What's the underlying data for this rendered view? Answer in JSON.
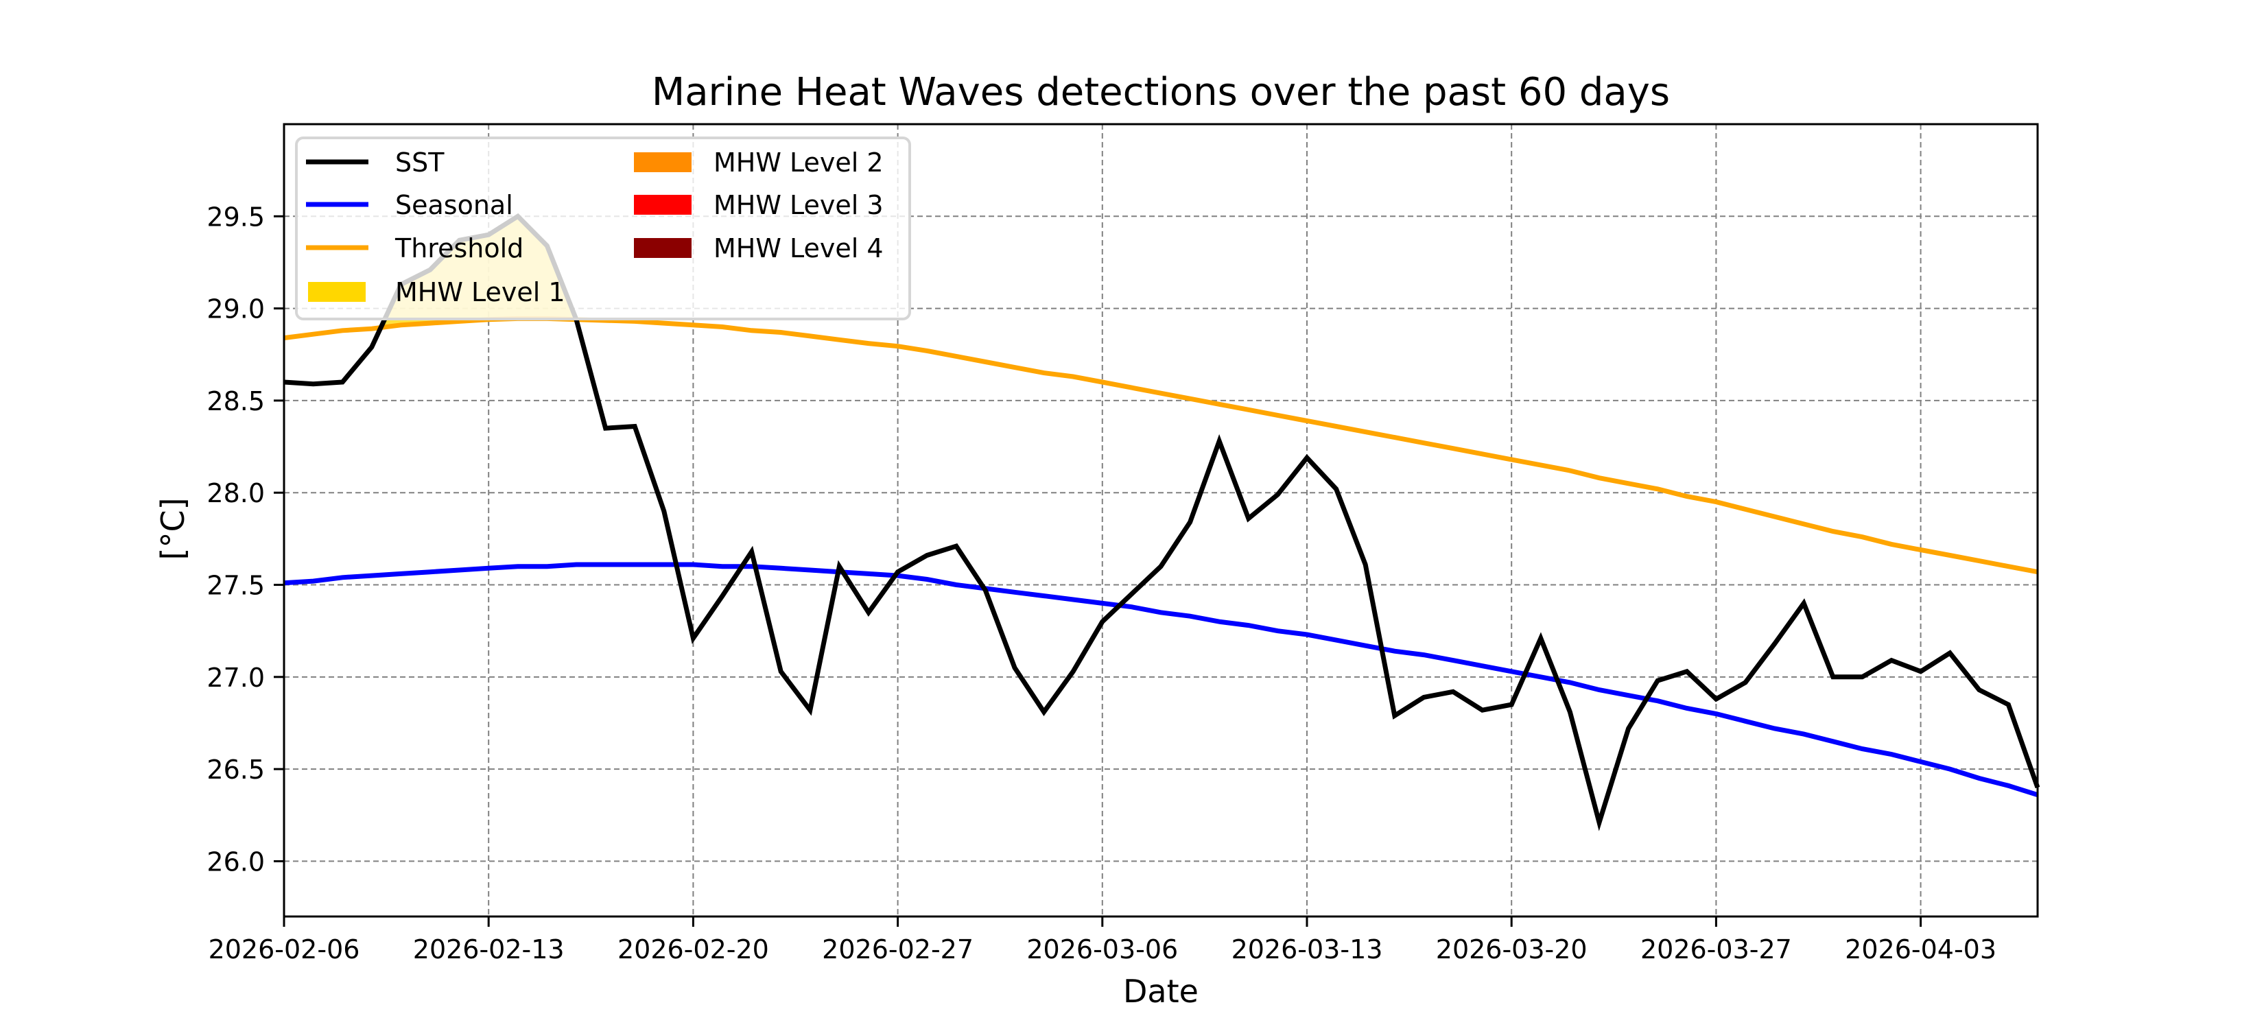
{
  "chart_data": {
    "type": "line",
    "title": "Marine Heat Waves detections over the past 60 days",
    "xlabel": "Date",
    "ylabel": "[°C]",
    "x_start": "2026-02-06",
    "x_end": "2026-04-07",
    "xlim_days": [
      0,
      60
    ],
    "ylim": [
      25.7,
      30.0
    ],
    "grid": true,
    "legend_position": "top-left",
    "x_ticks": [
      {
        "day": 0,
        "label": "2026-02-06"
      },
      {
        "day": 7,
        "label": "2026-02-13"
      },
      {
        "day": 14,
        "label": "2026-02-20"
      },
      {
        "day": 21,
        "label": "2026-02-27"
      },
      {
        "day": 28,
        "label": "2026-03-06"
      },
      {
        "day": 35,
        "label": "2026-03-13"
      },
      {
        "day": 42,
        "label": "2026-03-20"
      },
      {
        "day": 49,
        "label": "2026-03-27"
      },
      {
        "day": 56,
        "label": "2026-04-03"
      }
    ],
    "y_ticks": [
      {
        "value": 26.0,
        "label": "26.0"
      },
      {
        "value": 26.5,
        "label": "26.5"
      },
      {
        "value": 27.0,
        "label": "27.0"
      },
      {
        "value": 27.5,
        "label": "27.5"
      },
      {
        "value": 28.0,
        "label": "28.0"
      },
      {
        "value": 28.5,
        "label": "28.5"
      },
      {
        "value": 29.0,
        "label": "29.0"
      },
      {
        "value": 29.5,
        "label": "29.5"
      }
    ],
    "x_days": [
      0,
      1,
      2,
      3,
      4,
      5,
      6,
      7,
      8,
      9,
      10,
      11,
      12,
      13,
      14,
      15,
      16,
      17,
      18,
      19,
      20,
      21,
      22,
      23,
      24,
      25,
      26,
      27,
      28,
      29,
      30,
      31,
      32,
      33,
      34,
      35,
      36,
      37,
      38,
      39,
      40,
      41,
      42,
      43,
      44,
      45,
      46,
      47,
      48,
      49,
      50,
      51,
      52,
      53,
      54,
      55,
      56,
      57,
      58,
      59,
      60
    ],
    "series": [
      {
        "name": "SST",
        "color": "#000000",
        "values": [
          28.6,
          28.59,
          28.6,
          28.79,
          29.13,
          29.21,
          29.37,
          29.4,
          29.5,
          29.34,
          28.94,
          28.35,
          28.36,
          27.9,
          27.21,
          27.44,
          27.68,
          27.03,
          26.82,
          27.6,
          27.35,
          27.57,
          27.66,
          27.71,
          27.47,
          27.05,
          26.81,
          27.03,
          27.3,
          27.45,
          27.6,
          27.84,
          28.28,
          27.86,
          27.99,
          28.19,
          28.02,
          27.61,
          26.79,
          26.89,
          26.92,
          26.82,
          26.85,
          27.21,
          26.81,
          26.21,
          26.72,
          26.98,
          27.03,
          26.88,
          26.97,
          27.18,
          27.4,
          27.0,
          27.0,
          27.09,
          27.03,
          27.13,
          26.93,
          26.85,
          26.4
        ]
      },
      {
        "name": "Seasonal",
        "color": "#0000ff",
        "values": [
          27.51,
          27.52,
          27.54,
          27.55,
          27.56,
          27.57,
          27.58,
          27.59,
          27.6,
          27.6,
          27.61,
          27.61,
          27.61,
          27.61,
          27.61,
          27.6,
          27.6,
          27.59,
          27.58,
          27.57,
          27.56,
          27.55,
          27.53,
          27.5,
          27.48,
          27.46,
          27.44,
          27.42,
          27.4,
          27.38,
          27.35,
          27.33,
          27.3,
          27.28,
          27.25,
          27.23,
          27.2,
          27.17,
          27.14,
          27.12,
          27.09,
          27.06,
          27.03,
          27.0,
          26.97,
          26.93,
          26.9,
          26.87,
          26.83,
          26.8,
          26.76,
          26.72,
          26.69,
          26.65,
          26.61,
          26.58,
          26.54,
          26.5,
          26.45,
          26.41,
          26.36
        ]
      },
      {
        "name": "Threshold",
        "color": "#ffa500",
        "values": [
          28.84,
          28.86,
          28.88,
          28.89,
          28.91,
          28.92,
          28.93,
          28.94,
          28.945,
          28.945,
          28.94,
          28.935,
          28.93,
          28.92,
          28.91,
          28.9,
          28.88,
          28.87,
          28.85,
          28.83,
          28.81,
          28.795,
          28.77,
          28.74,
          28.71,
          28.68,
          28.65,
          28.63,
          28.6,
          28.57,
          28.54,
          28.51,
          28.48,
          28.45,
          28.42,
          28.39,
          28.36,
          28.33,
          28.3,
          28.27,
          28.24,
          28.21,
          28.18,
          28.15,
          28.12,
          28.08,
          28.05,
          28.02,
          27.98,
          27.95,
          27.91,
          27.87,
          27.83,
          27.79,
          27.76,
          27.72,
          27.69,
          27.66,
          27.63,
          27.6,
          27.57
        ]
      }
    ],
    "fills": [
      {
        "name": "MHW Level 1",
        "color": "#ffd700",
        "between": [
          "Threshold",
          "SST"
        ],
        "where": "SST > Threshold",
        "day_range": [
          3.3,
          10
        ]
      }
    ],
    "legend": {
      "columns": [
        [
          {
            "label": "SST",
            "kind": "line",
            "color": "#000000"
          },
          {
            "label": "Seasonal",
            "kind": "line",
            "color": "#0000ff"
          },
          {
            "label": "Threshold",
            "kind": "line",
            "color": "#ffa500"
          },
          {
            "label": "MHW Level 1",
            "kind": "patch",
            "color": "#ffd700"
          }
        ],
        [
          {
            "label": "MHW Level 2",
            "kind": "patch",
            "color": "#ff8c00"
          },
          {
            "label": "MHW Level 3",
            "kind": "patch",
            "color": "#ff0000"
          },
          {
            "label": "MHW Level 4",
            "kind": "patch",
            "color": "#8b0000"
          }
        ]
      ]
    }
  }
}
